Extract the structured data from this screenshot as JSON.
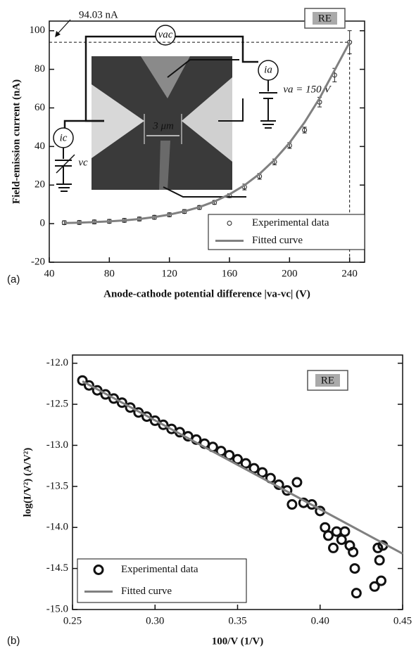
{
  "chart_data": [
    {
      "type": "scatter",
      "panel_label": "(a)",
      "badge": "RE",
      "annotation": "94.03 nA",
      "inset_labels": [
        "vac",
        "ia",
        "va = 150 V",
        "ic",
        "vc",
        "3 μm"
      ],
      "x_label": "Anode-cathode potential difference |va-vc|  (V)",
      "y_label": "Field-emission current  (nA)",
      "xlim": [
        40,
        250
      ],
      "xticks": [
        40,
        80,
        120,
        160,
        200,
        240
      ],
      "ylim": [
        -20,
        105
      ],
      "yticks": [
        -20,
        0,
        20,
        40,
        60,
        80,
        100
      ],
      "legend": "lower right",
      "series": [
        {
          "name": "Experimental data",
          "mode": "markers",
          "color": "#222222",
          "x": [
            50,
            60,
            70,
            80,
            90,
            100,
            110,
            120,
            130,
            140,
            150,
            160,
            170,
            180,
            190,
            200,
            210,
            220,
            230,
            240
          ],
          "values": [
            0.5,
            0.6,
            0.9,
            1.2,
            1.7,
            2.4,
            3.3,
            4.6,
            6.3,
            8.4,
            11,
            14.5,
            19,
            24.5,
            32,
            40.5,
            48.5,
            63,
            77,
            94.03
          ],
          "errors": [
            1,
            1,
            1,
            1,
            1,
            1,
            1,
            1,
            1,
            1,
            1,
            1,
            1.5,
            1.5,
            1.5,
            1.5,
            1.5,
            2.5,
            3.5,
            6
          ]
        },
        {
          "name": "Fitted curve",
          "mode": "line",
          "color": "#808080",
          "x": [
            50,
            60,
            70,
            80,
            90,
            100,
            110,
            120,
            130,
            140,
            150,
            160,
            170,
            180,
            190,
            200,
            210,
            220,
            230,
            240
          ],
          "values": [
            0.3,
            0.5,
            0.8,
            1.2,
            1.7,
            2.4,
            3.4,
            4.7,
            6.4,
            8.6,
            11.5,
            15.2,
            19.9,
            25.8,
            33.1,
            41.9,
            52.5,
            65,
            79.5,
            94
          ]
        }
      ]
    },
    {
      "type": "scatter",
      "panel_label": "(b)",
      "badge": "RE",
      "x_label": "100/V (1/V)",
      "y_label": "log(I/V²)  (A/V²)",
      "xlim": [
        0.25,
        0.45
      ],
      "xticks": [
        0.25,
        {
          "value": 0.3,
          "label": "0.30"
        },
        0.35,
        {
          "value": 0.4,
          "label": "0.40"
        },
        0.45
      ],
      "ylim": [
        -15,
        -11.9
      ],
      "yticks": [
        {
          "value": -12,
          "label": "-12.0"
        },
        -12.5,
        {
          "value": -13,
          "label": "-13.0"
        },
        -13.5,
        {
          "value": -14,
          "label": "-14.0"
        },
        -14.5,
        {
          "value": -15,
          "label": "-15.0"
        }
      ],
      "legend": "lower left",
      "series": [
        {
          "name": "Experimental data",
          "mode": "markers",
          "color": "#111111",
          "x": [
            0.256,
            0.26,
            0.265,
            0.27,
            0.275,
            0.28,
            0.285,
            0.29,
            0.295,
            0.3,
            0.305,
            0.31,
            0.315,
            0.32,
            0.325,
            0.33,
            0.335,
            0.34,
            0.345,
            0.35,
            0.355,
            0.36,
            0.365,
            0.37,
            0.375,
            0.38,
            0.383,
            0.386,
            0.39,
            0.395,
            0.4,
            0.403,
            0.405,
            0.408,
            0.41,
            0.413,
            0.415,
            0.418,
            0.42,
            0.421,
            0.422,
            0.433,
            0.435,
            0.436,
            0.437,
            0.438
          ],
          "values": [
            -12.21,
            -12.27,
            -12.33,
            -12.38,
            -12.43,
            -12.48,
            -12.54,
            -12.6,
            -12.65,
            -12.7,
            -12.75,
            -12.8,
            -12.84,
            -12.89,
            -12.93,
            -12.98,
            -13.02,
            -13.07,
            -13.12,
            -13.17,
            -13.22,
            -13.28,
            -13.33,
            -13.4,
            -13.48,
            -13.55,
            -13.72,
            -13.45,
            -13.7,
            -13.72,
            -13.8,
            -14.0,
            -14.1,
            -14.25,
            -14.05,
            -14.15,
            -14.05,
            -14.22,
            -14.3,
            -14.5,
            -14.8,
            -14.72,
            -14.25,
            -14.4,
            -14.65,
            -14.22
          ]
        },
        {
          "name": "Fitted curve",
          "mode": "line",
          "color": "#808080",
          "x": [
            0.256,
            0.45
          ],
          "values": [
            -12.22,
            -14.32
          ]
        }
      ]
    }
  ]
}
